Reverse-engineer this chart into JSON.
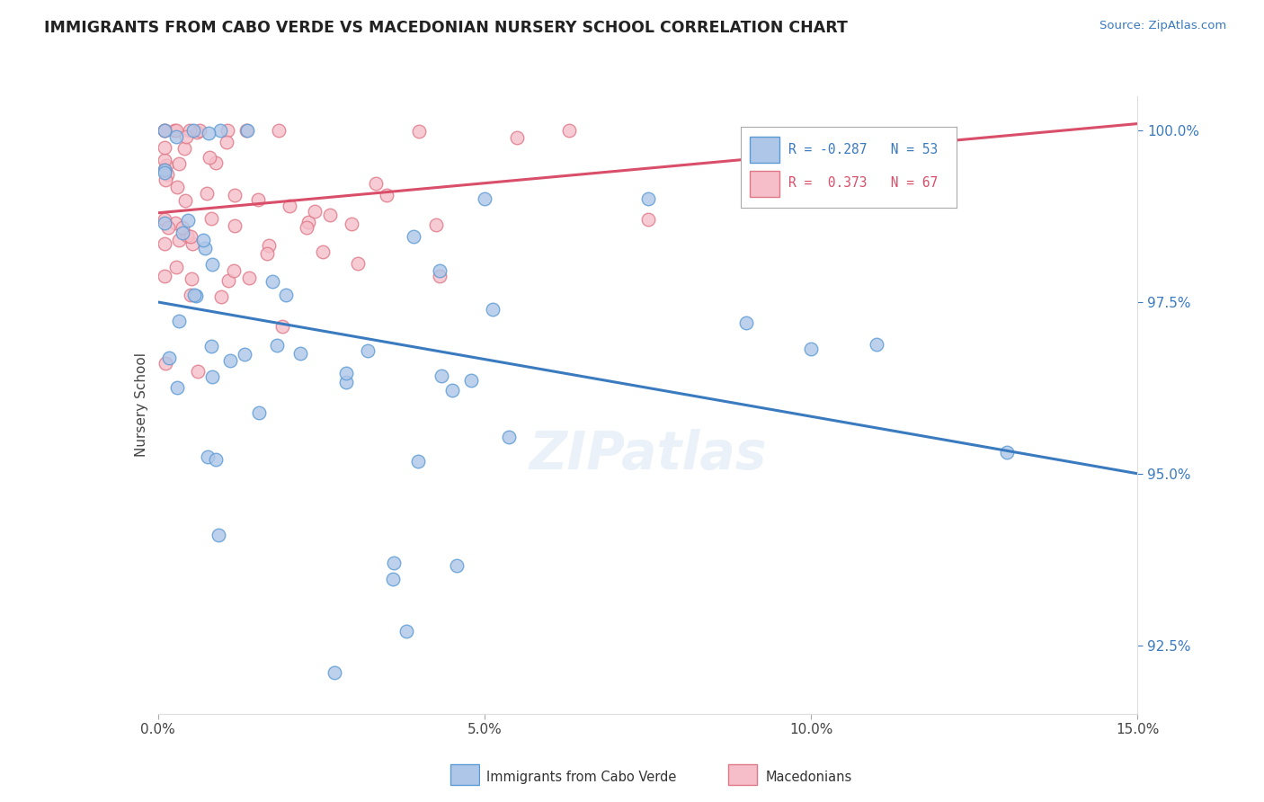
{
  "title": "IMMIGRANTS FROM CABO VERDE VS MACEDONIAN NURSERY SCHOOL CORRELATION CHART",
  "source": "Source: ZipAtlas.com",
  "ylabel": "Nursery School",
  "xlim": [
    0.0,
    0.15
  ],
  "ylim": [
    0.915,
    1.005
  ],
  "xticks": [
    0.0,
    0.05,
    0.1,
    0.15
  ],
  "xticklabels": [
    "0.0%",
    "5.0%",
    "10.0%",
    "15.0%"
  ],
  "yticks": [
    0.925,
    0.95,
    0.975,
    1.0
  ],
  "yticklabels": [
    "92.5%",
    "95.0%",
    "97.5%",
    "100.0%"
  ],
  "cabo_verde_color": "#aec6e8",
  "cabo_verde_edge": "#5b9bd5",
  "macedonian_color": "#f5bec8",
  "macedonian_edge": "#e07888",
  "cabo_verde_line_color": "#3a7abf",
  "macedonian_line_color": "#d94f6a",
  "r_cabo": -0.287,
  "n_cabo": 53,
  "r_mac": 0.373,
  "n_mac": 67,
  "watermark": "ZIPatlas",
  "cv_line_x0": 0.0,
  "cv_line_y0": 0.975,
  "cv_line_x1": 0.15,
  "cv_line_y1": 0.95,
  "mac_line_x0": 0.0,
  "mac_line_y0": 0.988,
  "mac_line_x1": 0.15,
  "mac_line_y1": 1.001
}
